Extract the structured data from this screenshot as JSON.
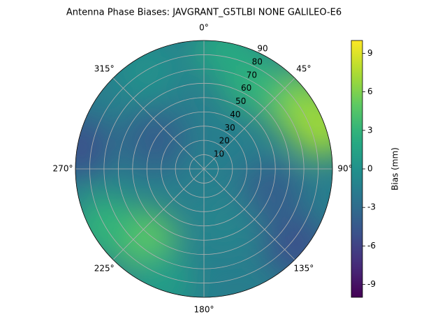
{
  "chart_data": {
    "type": "polar-contour",
    "title": "Antenna Phase Biases: JAVGRANT_G5TLBI NONE GALILEO-E6",
    "colorbar_label": "Bias (mm)",
    "clim": [
      -10,
      10
    ],
    "cticks": [
      -9,
      -6,
      -3,
      0,
      3,
      6,
      9
    ],
    "colormap": "viridis",
    "rlim": [
      0,
      90
    ],
    "rticks": [
      10,
      20,
      30,
      40,
      50,
      60,
      70,
      80,
      90
    ],
    "thetaticks": [
      {
        "value": 0,
        "label": "0°"
      },
      {
        "value": 45,
        "label": "45°"
      },
      {
        "value": 90,
        "label": "90°"
      },
      {
        "value": 135,
        "label": "135°"
      },
      {
        "value": 180,
        "label": "180°"
      },
      {
        "value": 225,
        "label": "225°"
      },
      {
        "value": 270,
        "label": "270°"
      },
      {
        "value": 315,
        "label": "315°"
      }
    ],
    "grid": true,
    "background": -1.5,
    "samples": [
      {
        "azimuth": 55,
        "zenith": 80,
        "value": 6
      },
      {
        "azimuth": 70,
        "zenith": 88,
        "value": 7
      },
      {
        "azimuth": 30,
        "zenith": 70,
        "value": 3
      },
      {
        "azimuth": 10,
        "zenith": 85,
        "value": 2
      },
      {
        "azimuth": 220,
        "zenith": 65,
        "value": 5
      },
      {
        "azimuth": 240,
        "zenith": 80,
        "value": 3
      },
      {
        "azimuth": 200,
        "zenith": 85,
        "value": 1
      },
      {
        "azimuth": 280,
        "zenith": 88,
        "value": -5
      },
      {
        "azimuth": 300,
        "zenith": 40,
        "value": -4
      },
      {
        "azimuth": 130,
        "zenith": 85,
        "value": -5
      },
      {
        "azimuth": 110,
        "zenith": 50,
        "value": -4
      },
      {
        "azimuth": 160,
        "zenith": 40,
        "value": -1
      },
      {
        "azimuth": 330,
        "zenith": 80,
        "value": 0
      }
    ]
  }
}
